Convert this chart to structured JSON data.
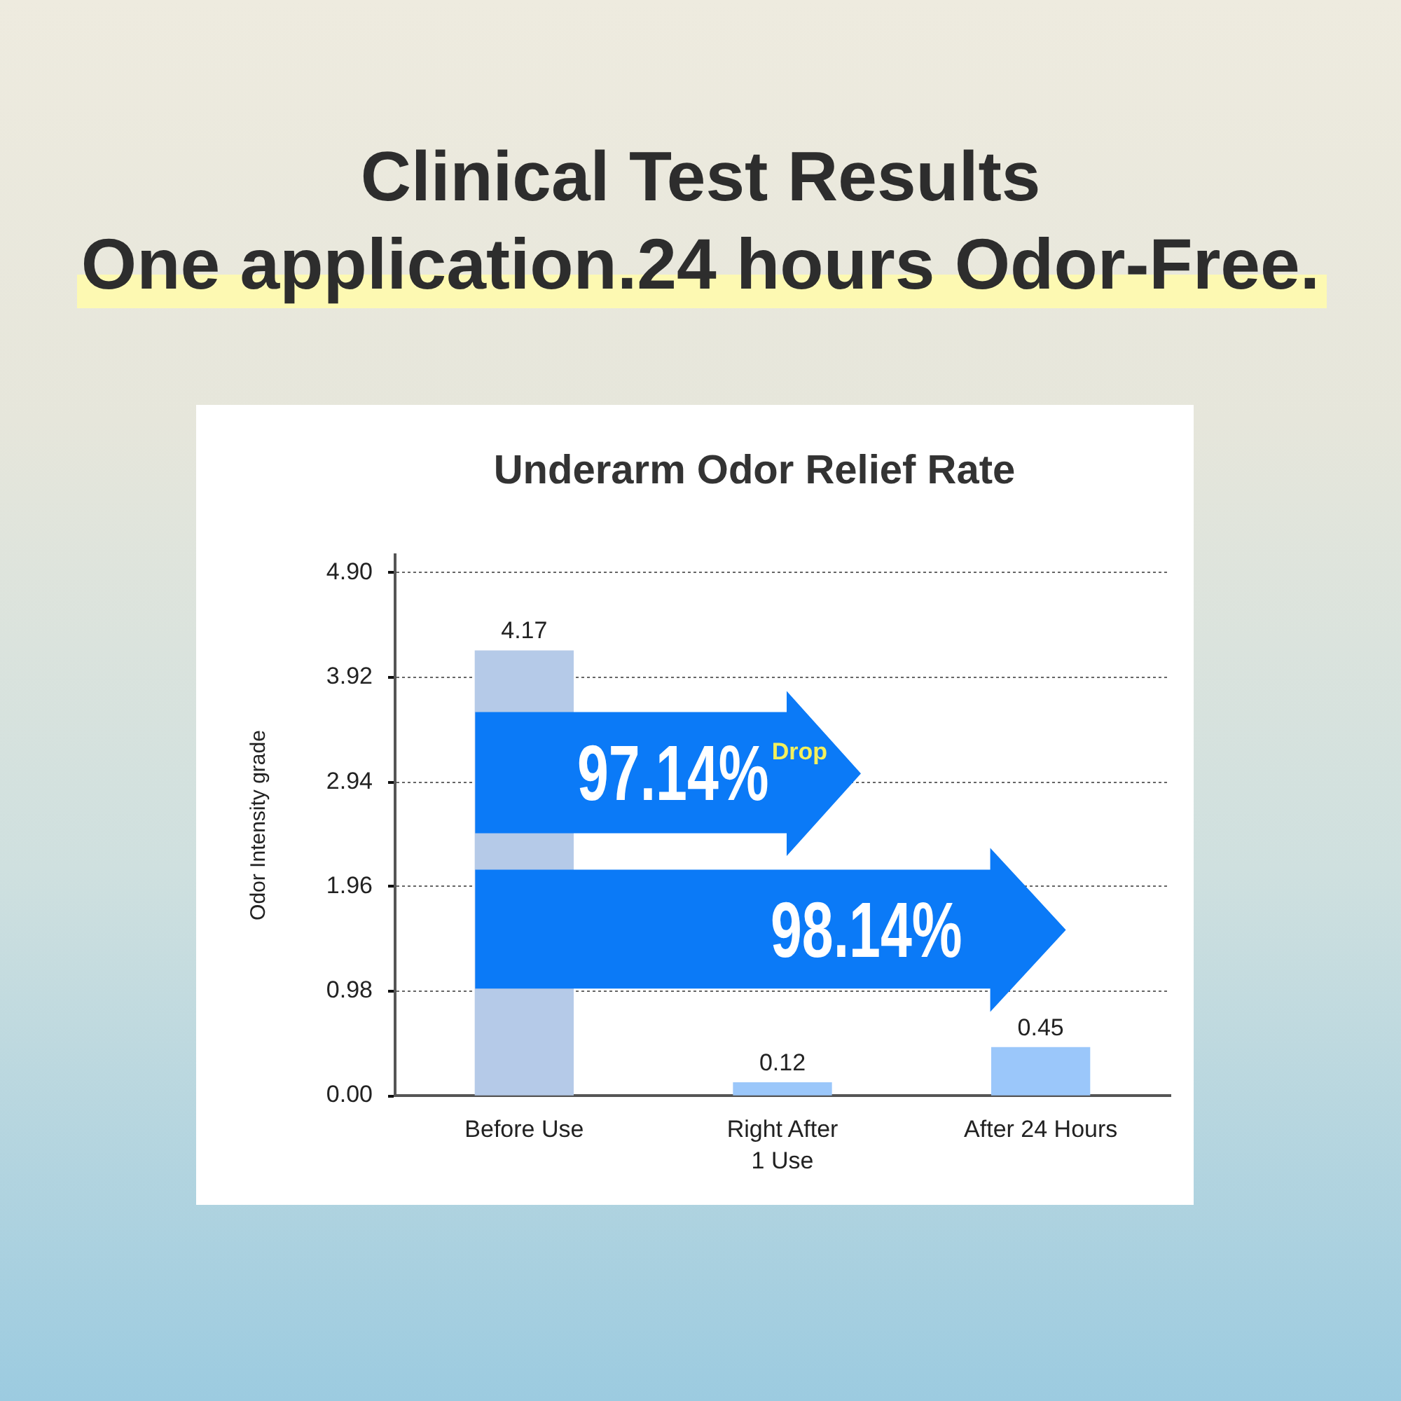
{
  "chart_data": {
    "type": "bar",
    "title": "Clinical Test Results",
    "subtitle": "One application.24 hours Odor-Free.",
    "ylabel": "Odor Intensity grade",
    "categories": [
      "Before Use",
      "Right After\n1 Use",
      "After 24 Hours"
    ],
    "values": [
      4.17,
      0.12,
      0.45
    ],
    "colors": [
      "#b5cae8",
      "#9bc7fa",
      "#9bc7fa"
    ],
    "ylim": [
      0,
      5.07
    ],
    "yticks": [
      {
        "value": 0,
        "label": "0.00"
      },
      0.98,
      1.96,
      2.94,
      3.92,
      {
        "value": 4.9,
        "label": "4.90"
      }
    ],
    "grid": "y",
    "data_labels": true,
    "annotations": [
      "Underarm Odor Relief Rate",
      "97.14%",
      "Drop",
      "98.14%"
    ]
  }
}
